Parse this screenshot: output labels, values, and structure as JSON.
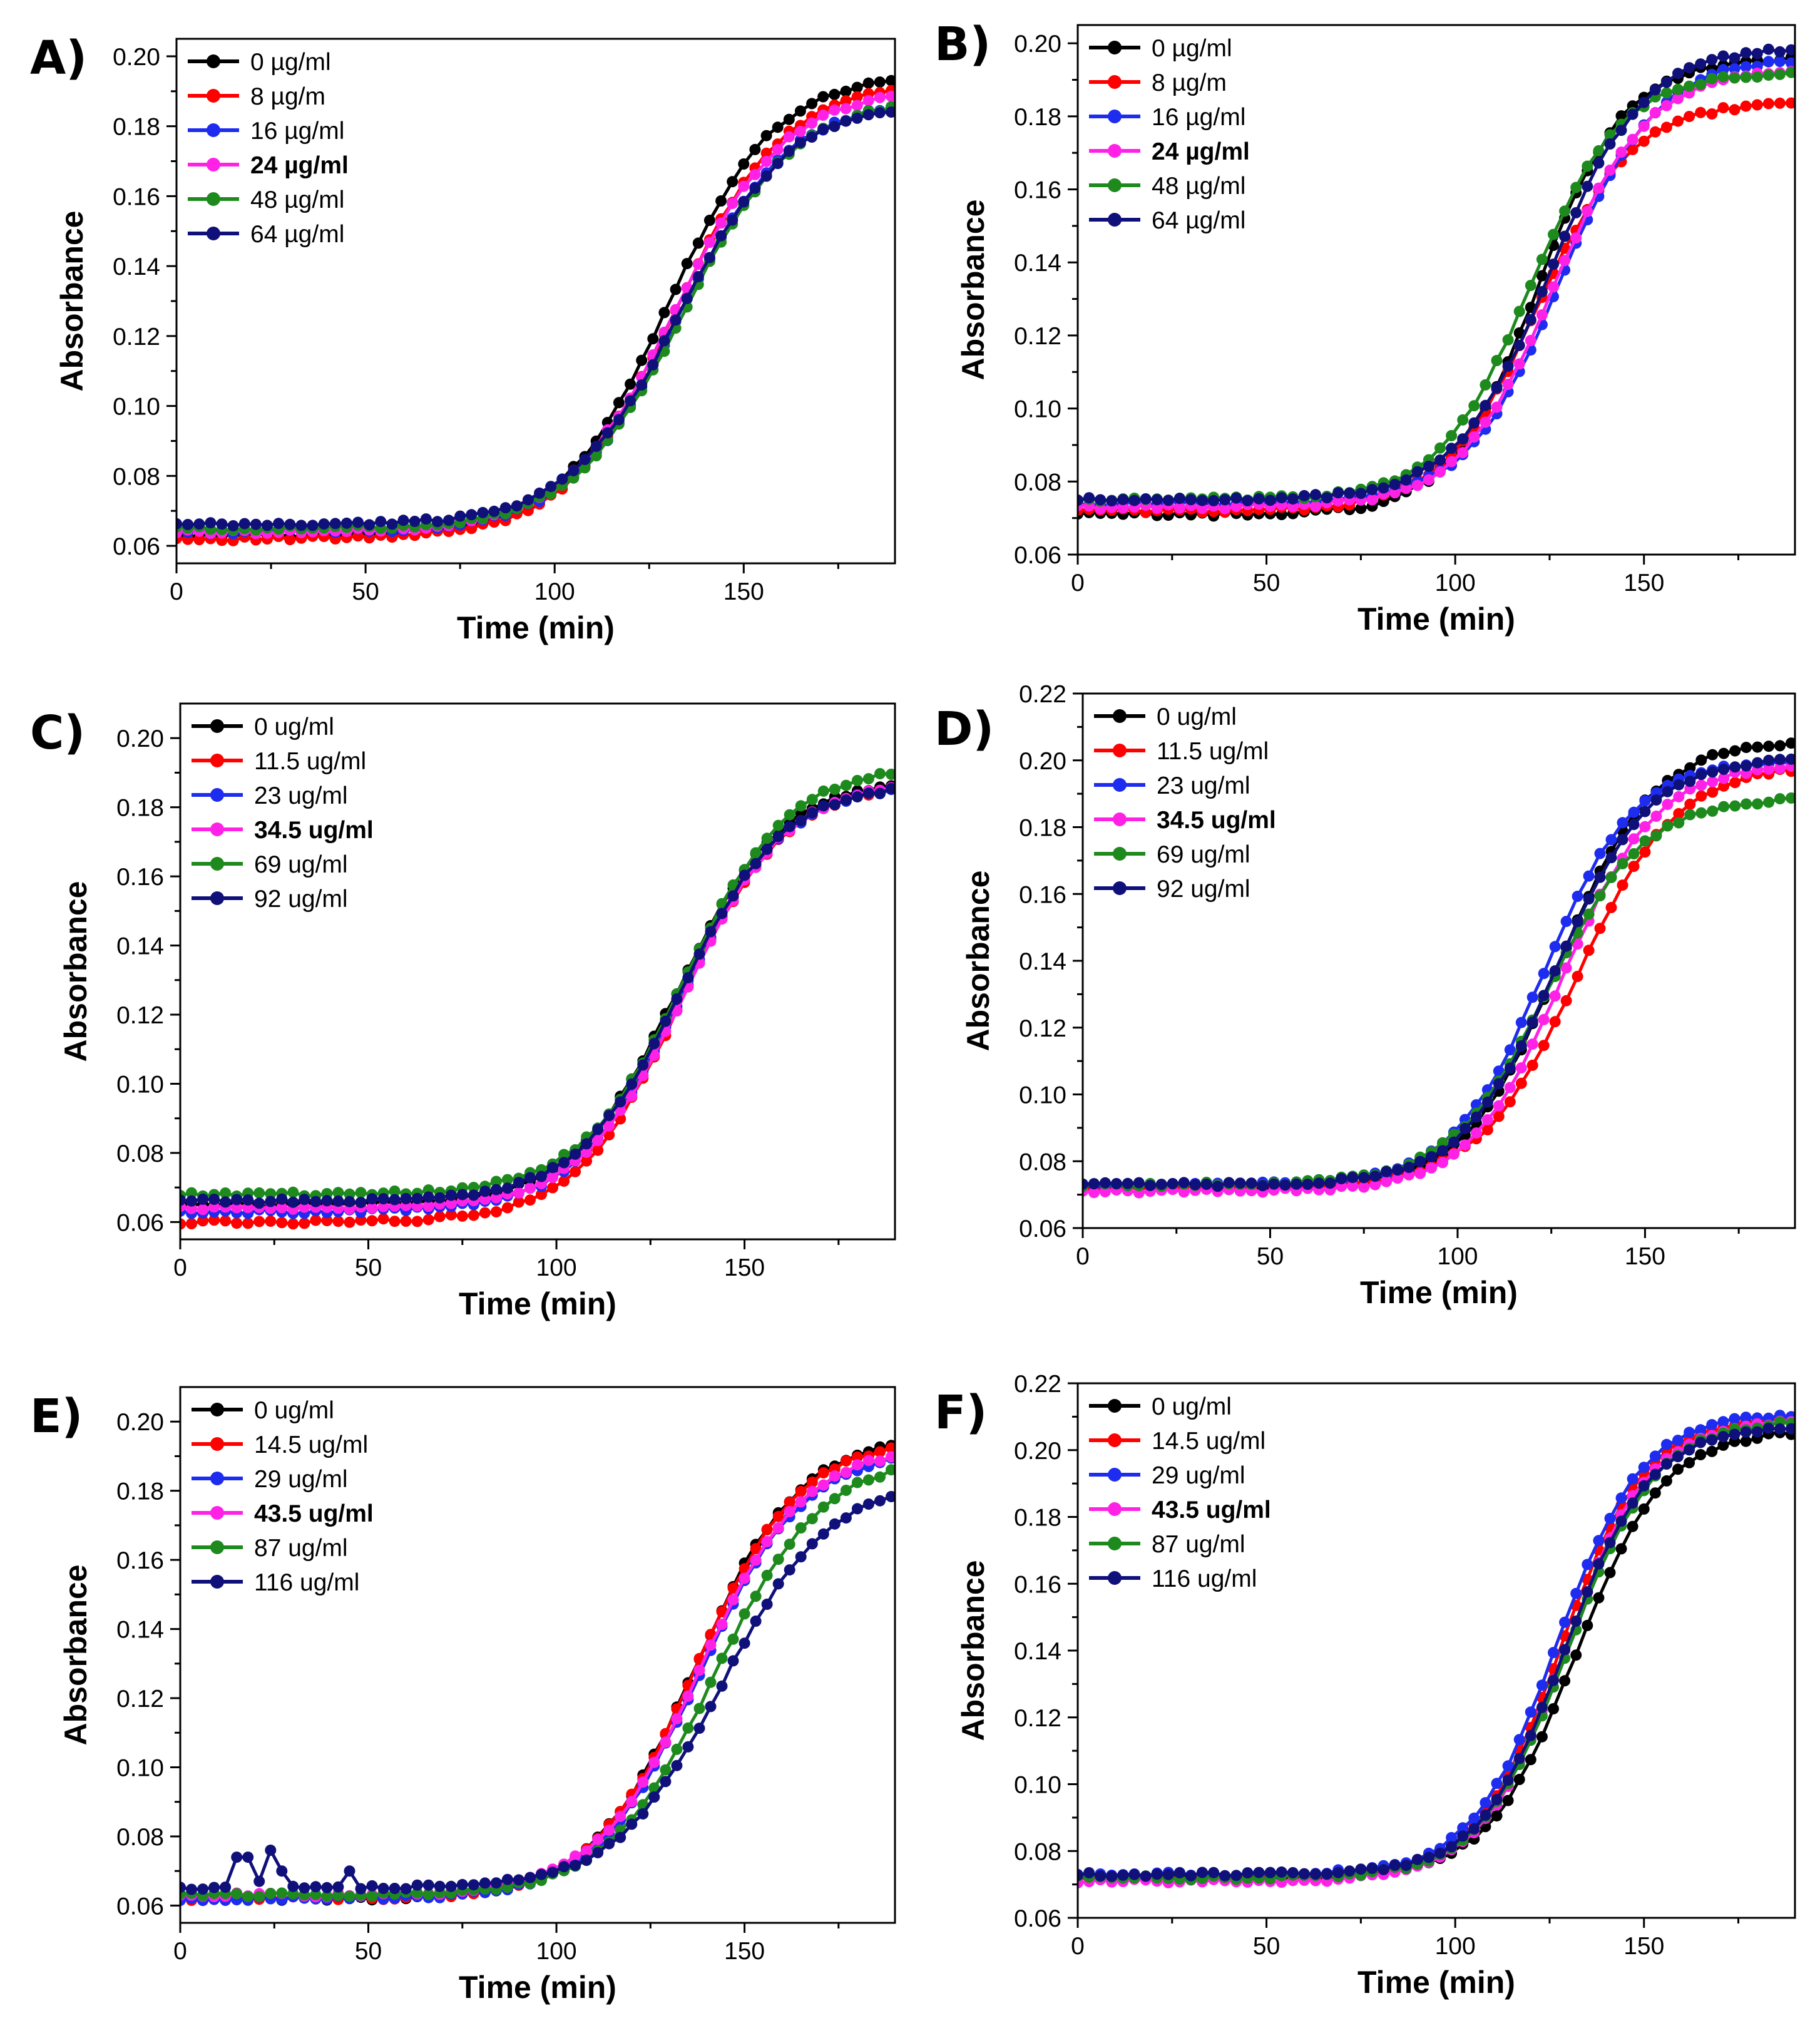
{
  "series_colors": [
    "#000000",
    "#ff0000",
    "#1e2cf0",
    "#ff22e6",
    "#1e8a1e",
    "#10107a"
  ],
  "chart_data": [
    {
      "type": "line",
      "panel": "A)",
      "xlabel": "Time (min)",
      "ylabel": "Absorbance",
      "xlim": [
        0,
        190
      ],
      "ylim": [
        0.055,
        0.205
      ],
      "xticks": [
        0,
        50,
        100,
        150
      ],
      "yticks": [
        0.06,
        0.08,
        0.1,
        0.12,
        0.14,
        0.16,
        0.18,
        0.2
      ],
      "ytick_labels": [
        "0.06",
        "0.08",
        "0.10",
        "0.12",
        "0.14",
        "0.16",
        "0.18",
        "0.20"
      ],
      "legend_position": "top-left",
      "x_sampling": "every 3 min from 0 to 189",
      "series": [
        {
          "name": "0 µg/ml",
          "bold": false,
          "start": 0.063,
          "end": 0.195,
          "midpoint": 130,
          "width": 34
        },
        {
          "name": "8 µg/m",
          "bold": false,
          "start": 0.062,
          "end": 0.193,
          "midpoint": 132,
          "width": 35
        },
        {
          "name": "16 µg/ml",
          "bold": false,
          "start": 0.064,
          "end": 0.188,
          "midpoint": 133,
          "width": 35
        },
        {
          "name": "24 µg/ml",
          "bold": true,
          "start": 0.064,
          "end": 0.191,
          "midpoint": 132,
          "width": 35
        },
        {
          "name": "48 µg/ml",
          "bold": false,
          "start": 0.065,
          "end": 0.188,
          "midpoint": 134,
          "width": 35
        },
        {
          "name": "64 µg/ml",
          "bold": false,
          "start": 0.066,
          "end": 0.187,
          "midpoint": 133,
          "width": 35
        }
      ]
    },
    {
      "type": "line",
      "panel": "B)",
      "xlabel": "Time (min)",
      "ylabel": "Absorbance",
      "xlim": [
        0,
        190
      ],
      "ylim": [
        0.06,
        0.205
      ],
      "xticks": [
        0,
        50,
        100,
        150
      ],
      "yticks": [
        0.06,
        0.08,
        0.1,
        0.12,
        0.14,
        0.16,
        0.18,
        0.2
      ],
      "ytick_labels": [
        "0.06",
        "0.08",
        "0.10",
        "0.12",
        "0.14",
        "0.16",
        "0.18",
        "0.20"
      ],
      "legend_position": "top-left",
      "x_sampling": "every 3 min from 0 to 189",
      "series": [
        {
          "name": "0 µg/ml",
          "bold": false,
          "start": 0.071,
          "end": 0.196,
          "midpoint": 122,
          "width": 28
        },
        {
          "name": "8 µg/m",
          "bold": false,
          "start": 0.072,
          "end": 0.184,
          "midpoint": 122,
          "width": 30
        },
        {
          "name": "16 µg/ml",
          "bold": false,
          "start": 0.074,
          "end": 0.196,
          "midpoint": 128,
          "width": 30
        },
        {
          "name": "24 µg/ml",
          "bold": true,
          "start": 0.073,
          "end": 0.193,
          "midpoint": 126,
          "width": 30
        },
        {
          "name": "48 µg/ml",
          "bold": false,
          "start": 0.075,
          "end": 0.192,
          "midpoint": 120,
          "width": 29
        },
        {
          "name": "64 µg/ml",
          "bold": false,
          "start": 0.075,
          "end": 0.199,
          "midpoint": 125,
          "width": 30
        }
      ]
    },
    {
      "type": "line",
      "panel": "C)",
      "xlabel": "Time (min)",
      "ylabel": "Absorbance",
      "xlim": [
        0,
        190
      ],
      "ylim": [
        0.055,
        0.21
      ],
      "xticks": [
        0,
        50,
        100,
        150
      ],
      "yticks": [
        0.06,
        0.08,
        0.1,
        0.12,
        0.14,
        0.16,
        0.18,
        0.2
      ],
      "ytick_labels": [
        "0.06",
        "0.08",
        "0.10",
        "0.12",
        "0.14",
        "0.16",
        "0.18",
        "0.20"
      ],
      "legend_position": "top-left",
      "x_sampling": "every 3 min from 0 to 189",
      "series": [
        {
          "name": "0 ug/ml",
          "bold": false,
          "start": 0.065,
          "end": 0.188,
          "midpoint": 132,
          "width": 33
        },
        {
          "name": "11.5 ug/ml",
          "bold": false,
          "start": 0.06,
          "end": 0.187,
          "midpoint": 133,
          "width": 33
        },
        {
          "name": "23 ug/ml",
          "bold": false,
          "start": 0.063,
          "end": 0.187,
          "midpoint": 133,
          "width": 33
        },
        {
          "name": "34.5 ug/ml",
          "bold": true,
          "start": 0.064,
          "end": 0.188,
          "midpoint": 134,
          "width": 33
        },
        {
          "name": "69 ug/ml",
          "bold": false,
          "start": 0.068,
          "end": 0.192,
          "midpoint": 134,
          "width": 33
        },
        {
          "name": "92 ug/ml",
          "bold": false,
          "start": 0.066,
          "end": 0.187,
          "midpoint": 133,
          "width": 33
        }
      ]
    },
    {
      "type": "line",
      "panel": "D)",
      "xlabel": "Time (min)",
      "ylabel": "Absorbance",
      "xlim": [
        0,
        190
      ],
      "ylim": [
        0.06,
        0.22
      ],
      "xticks": [
        0,
        50,
        100,
        150
      ],
      "yticks": [
        0.06,
        0.08,
        0.1,
        0.12,
        0.14,
        0.16,
        0.18,
        0.2,
        0.22
      ],
      "ytick_labels": [
        "0.06",
        "0.08",
        "0.10",
        "0.12",
        "0.14",
        "0.16",
        "0.18",
        "0.20",
        "0.22"
      ],
      "legend_position": "top-left",
      "x_sampling": "every 3 min from 0 to 189",
      "series": [
        {
          "name": "0 ug/ml",
          "bold": false,
          "start": 0.072,
          "end": 0.206,
          "midpoint": 127,
          "width": 30
        },
        {
          "name": "11.5 ug/ml",
          "bold": false,
          "start": 0.072,
          "end": 0.199,
          "midpoint": 132,
          "width": 32
        },
        {
          "name": "23 ug/ml",
          "bold": false,
          "start": 0.073,
          "end": 0.2,
          "midpoint": 123,
          "width": 29
        },
        {
          "name": "34.5 ug/ml",
          "bold": true,
          "start": 0.071,
          "end": 0.199,
          "midpoint": 128,
          "width": 30
        },
        {
          "name": "69 ug/ml",
          "bold": false,
          "start": 0.073,
          "end": 0.189,
          "midpoint": 124,
          "width": 31
        },
        {
          "name": "92 ug/ml",
          "bold": false,
          "start": 0.073,
          "end": 0.201,
          "midpoint": 126,
          "width": 30
        }
      ]
    },
    {
      "type": "line",
      "panel": "E)",
      "xlabel": "Time (min)",
      "ylabel": "Absorbance",
      "xlim": [
        0,
        190
      ],
      "ylim": [
        0.055,
        0.21
      ],
      "xticks": [
        0,
        50,
        100,
        150
      ],
      "yticks": [
        0.06,
        0.08,
        0.1,
        0.12,
        0.14,
        0.16,
        0.18,
        0.2
      ],
      "ytick_labels": [
        "0.06",
        "0.08",
        "0.10",
        "0.12",
        "0.14",
        "0.16",
        "0.18",
        "0.20"
      ],
      "legend_position": "top-left",
      "x_sampling": "every 3 min from 0 to 189",
      "series": [
        {
          "name": "0 ug/ml",
          "bold": false,
          "start": 0.062,
          "end": 0.196,
          "midpoint": 137,
          "width": 33
        },
        {
          "name": "14.5 ug/ml",
          "bold": false,
          "start": 0.062,
          "end": 0.195,
          "midpoint": 137,
          "width": 33
        },
        {
          "name": "29 ug/ml",
          "bold": false,
          "start": 0.062,
          "end": 0.192,
          "midpoint": 138,
          "width": 33
        },
        {
          "name": "43.5 ug/ml",
          "bold": true,
          "start": 0.063,
          "end": 0.193,
          "midpoint": 138,
          "width": 33
        },
        {
          "name": "87 ug/ml",
          "bold": false,
          "start": 0.063,
          "end": 0.19,
          "midpoint": 142,
          "width": 34
        },
        {
          "name": "116 ug/ml",
          "bold": false,
          "start": 0.065,
          "end": 0.183,
          "midpoint": 144,
          "width": 34
        }
      ],
      "annotation": "116 ug/ml shows early bumps near 0.074–0.076 at ~18 and ~24 min"
    },
    {
      "type": "line",
      "panel": "F)",
      "xlabel": "Time (min)",
      "ylabel": "Absorbance",
      "xlim": [
        0,
        190
      ],
      "ylim": [
        0.06,
        0.22
      ],
      "xticks": [
        0,
        50,
        100,
        150
      ],
      "yticks": [
        0.06,
        0.08,
        0.1,
        0.12,
        0.14,
        0.16,
        0.18,
        0.2,
        0.22
      ],
      "ytick_labels": [
        "0.06",
        "0.08",
        "0.10",
        "0.12",
        "0.14",
        "0.16",
        "0.18",
        "0.20",
        "0.22"
      ],
      "legend_position": "top-left",
      "x_sampling": "every 3 min from 0 to 189",
      "series": [
        {
          "name": "0 ug/ml",
          "bold": false,
          "start": 0.072,
          "end": 0.206,
          "midpoint": 132,
          "width": 28
        },
        {
          "name": "14.5 ug/ml",
          "bold": false,
          "start": 0.072,
          "end": 0.21,
          "midpoint": 128,
          "width": 27
        },
        {
          "name": "29 ug/ml",
          "bold": false,
          "start": 0.073,
          "end": 0.211,
          "midpoint": 127,
          "width": 27
        },
        {
          "name": "43.5 ug/ml",
          "bold": true,
          "start": 0.071,
          "end": 0.209,
          "midpoint": 129,
          "width": 27
        },
        {
          "name": "87 ug/ml",
          "bold": false,
          "start": 0.072,
          "end": 0.209,
          "midpoint": 130,
          "width": 28
        },
        {
          "name": "116 ug/ml",
          "bold": false,
          "start": 0.073,
          "end": 0.207,
          "midpoint": 129,
          "width": 27
        }
      ]
    }
  ]
}
